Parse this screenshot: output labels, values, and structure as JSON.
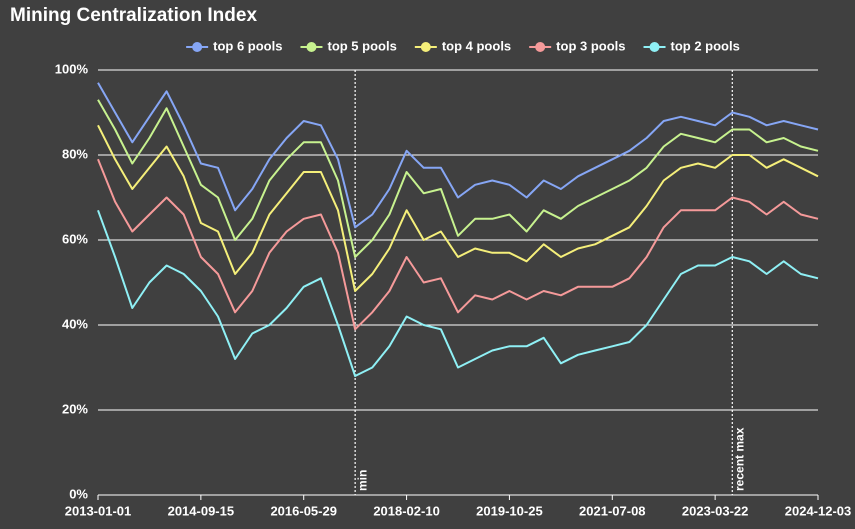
{
  "chart_data": {
    "type": "line",
    "title": "Mining Centralization Index",
    "categories": [
      "2013-01-01",
      null,
      null,
      null,
      null,
      null,
      "2014-09-15",
      null,
      null,
      null,
      null,
      null,
      "2016-05-29",
      null,
      null,
      null,
      null,
      null,
      "2018-02-10",
      null,
      null,
      null,
      null,
      null,
      "2019-10-25",
      null,
      null,
      null,
      null,
      null,
      "2021-07-08",
      null,
      null,
      null,
      null,
      null,
      "2023-03-22",
      null,
      null,
      null,
      null,
      null,
      "2024-12-03"
    ],
    "series": [
      {
        "name": "top 6 pools",
        "color": "#86a6f5",
        "values": [
          97,
          90,
          83,
          89,
          95,
          87,
          78,
          77,
          67,
          72,
          79,
          84,
          88,
          87,
          79,
          63,
          66,
          72,
          81,
          77,
          77,
          70,
          73,
          74,
          73,
          70,
          74,
          72,
          75,
          77,
          79,
          81,
          84,
          88,
          89,
          88,
          87,
          90,
          89,
          87,
          88,
          87,
          86
        ]
      },
      {
        "name": "top 5 pools",
        "color": "#c7f28f",
        "values": [
          93,
          86,
          78,
          84,
          91,
          82,
          73,
          70,
          60,
          65,
          74,
          79,
          83,
          83,
          74,
          56,
          60,
          66,
          76,
          71,
          72,
          61,
          65,
          65,
          66,
          62,
          67,
          65,
          68,
          70,
          72,
          74,
          77,
          82,
          85,
          84,
          83,
          86,
          86,
          83,
          84,
          82,
          81
        ]
      },
      {
        "name": "top 4 pools",
        "color": "#f5ef7a",
        "values": [
          87,
          79,
          72,
          77,
          82,
          75,
          64,
          62,
          52,
          57,
          66,
          71,
          76,
          76,
          67,
          48,
          52,
          58,
          67,
          60,
          62,
          56,
          58,
          57,
          57,
          55,
          59,
          56,
          58,
          59,
          61,
          63,
          68,
          74,
          77,
          78,
          77,
          80,
          80,
          77,
          79,
          77,
          75
        ]
      },
      {
        "name": "top 3 pools",
        "color": "#f59a9a",
        "values": [
          79,
          69,
          62,
          66,
          70,
          66,
          56,
          52,
          43,
          48,
          57,
          62,
          65,
          66,
          57,
          39,
          43,
          48,
          56,
          50,
          51,
          43,
          47,
          46,
          48,
          46,
          48,
          47,
          49,
          49,
          49,
          51,
          56,
          63,
          67,
          67,
          67,
          70,
          69,
          66,
          69,
          66,
          65
        ]
      },
      {
        "name": "top 2 pools",
        "color": "#8ff0f5",
        "values": [
          67,
          56,
          44,
          50,
          54,
          52,
          48,
          42,
          32,
          38,
          40,
          44,
          49,
          51,
          40,
          28,
          30,
          35,
          42,
          40,
          39,
          30,
          32,
          34,
          35,
          35,
          37,
          31,
          33,
          34,
          35,
          36,
          40,
          46,
          52,
          54,
          54,
          56,
          55,
          52,
          55,
          52,
          51
        ]
      }
    ],
    "ylim": [
      0,
      100
    ],
    "yticks": [
      {
        "value": 0,
        "label": "0%"
      },
      {
        "value": 20,
        "label": "20%"
      },
      {
        "value": 40,
        "label": "40%"
      },
      {
        "value": 60,
        "label": "60%"
      },
      {
        "value": 80,
        "label": "80%"
      },
      {
        "value": 100,
        "label": "100%"
      }
    ],
    "grid": true,
    "legend": "top",
    "annotations": [
      {
        "text": "min",
        "index": 15
      },
      {
        "text": "recent max",
        "index": 37
      }
    ]
  }
}
